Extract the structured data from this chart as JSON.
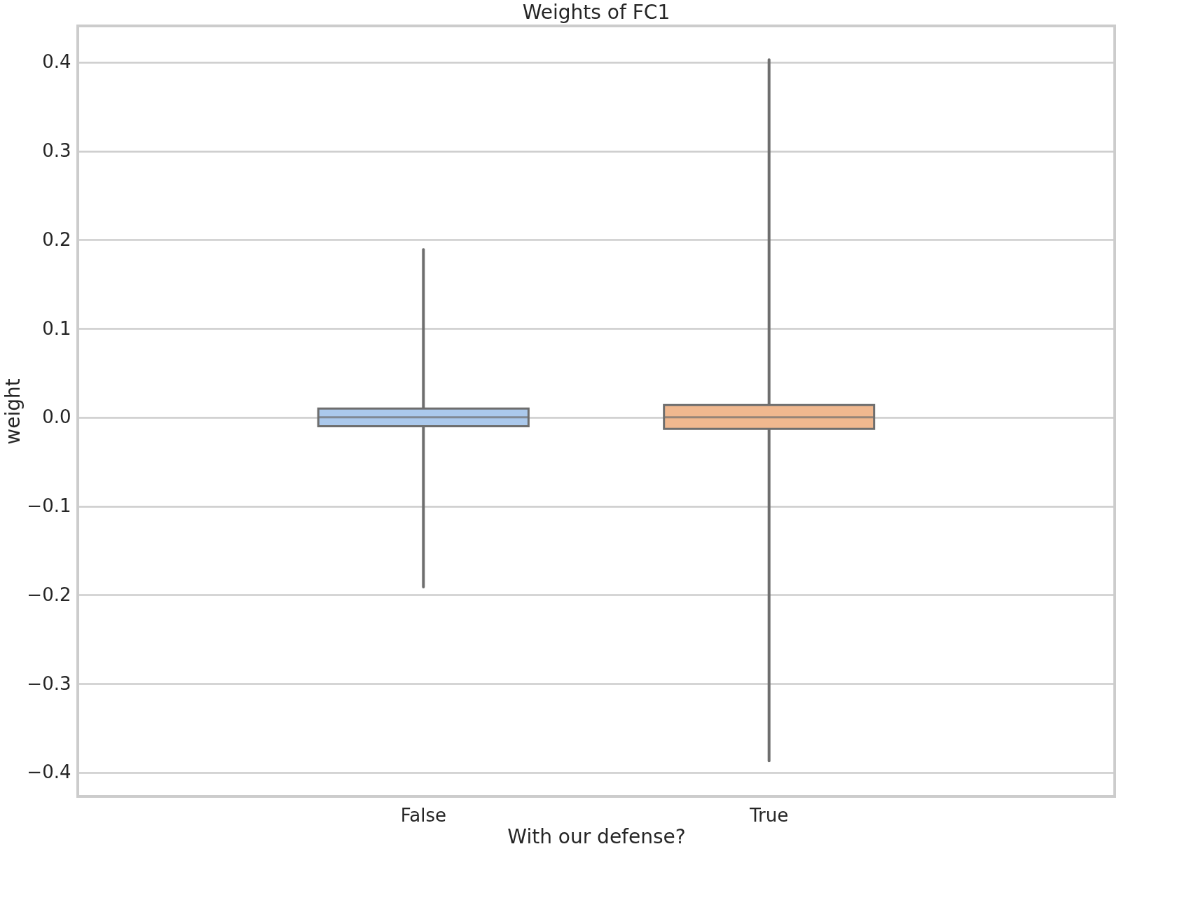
{
  "chart_data": {
    "type": "box",
    "title": "Weights of FC1",
    "xlabel": "With our defense?",
    "ylabel": "weight",
    "categories": [
      "False",
      "True"
    ],
    "boxes": [
      {
        "low": -0.191,
        "q1": -0.01,
        "median": 0.0,
        "q3": 0.01,
        "high": 0.189
      },
      {
        "low": -0.387,
        "q1": -0.013,
        "median": 0.0,
        "q3": 0.014,
        "high": 0.403
      }
    ],
    "colors": [
      "#abc9ec",
      "#f0b88f"
    ],
    "ylim": [
      -0.427,
      0.441
    ],
    "yticks": [
      {
        "value": -0.4,
        "label": "−0.4"
      },
      {
        "value": -0.3,
        "label": "−0.3"
      },
      {
        "value": -0.2,
        "label": "−0.2"
      },
      {
        "value": -0.1,
        "label": "−0.1"
      },
      {
        "value": 0.0,
        "label": "0.0"
      },
      {
        "value": 0.1,
        "label": "0.1"
      },
      {
        "value": 0.2,
        "label": "0.2"
      },
      {
        "value": 0.3,
        "label": "0.3"
      },
      {
        "value": 0.4,
        "label": "0.4"
      }
    ],
    "grid": "y"
  }
}
